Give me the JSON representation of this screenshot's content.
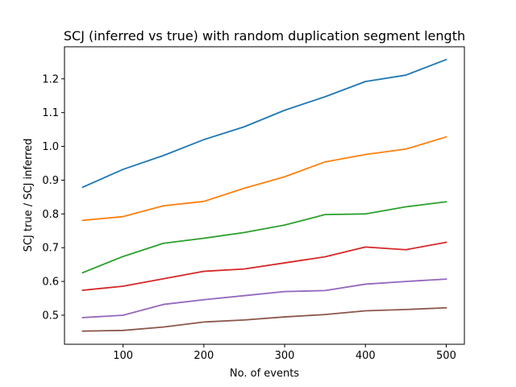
{
  "chart_data": {
    "type": "line",
    "title": "SCJ (inferred vs true) with random duplication segment length",
    "xlabel": "No. of events",
    "ylabel": "SCJ true / SCJ inferred",
    "xlim": [
      27.5,
      522.5
    ],
    "ylim": [
      0.414,
      1.295
    ],
    "x_ticks": [
      100,
      200,
      300,
      400,
      500
    ],
    "y_ticks": [
      0.5,
      0.6,
      0.7,
      0.8,
      0.9,
      1.0,
      1.1,
      1.2
    ],
    "y_tick_labels": [
      "0.5",
      "0.6",
      "0.7",
      "0.8",
      "0.9",
      "1.0",
      "1.1",
      "1.2"
    ],
    "grid": false,
    "x": [
      50,
      100,
      150,
      200,
      250,
      300,
      350,
      400,
      450,
      500
    ],
    "series": [
      {
        "color": "#1f77b4",
        "values": [
          0.879,
          0.932,
          0.973,
          1.02,
          1.058,
          1.107,
          1.147,
          1.192,
          1.211,
          1.257
        ]
      },
      {
        "color": "#ff7f0e",
        "values": [
          0.781,
          0.792,
          0.824,
          0.837,
          0.876,
          0.91,
          0.954,
          0.976,
          0.992,
          1.028
        ]
      },
      {
        "color": "#2ca02c",
        "values": [
          0.626,
          0.674,
          0.713,
          0.728,
          0.745,
          0.767,
          0.798,
          0.8,
          0.821,
          0.836
        ]
      },
      {
        "color": "#d62728",
        "values": [
          0.574,
          0.586,
          0.608,
          0.63,
          0.637,
          0.655,
          0.673,
          0.702,
          0.694,
          0.716
        ]
      },
      {
        "color": "#9467bd",
        "values": [
          0.493,
          0.5,
          0.532,
          0.546,
          0.558,
          0.57,
          0.573,
          0.592,
          0.6,
          0.607
        ]
      },
      {
        "color": "#8c564b",
        "values": [
          0.453,
          0.455,
          0.465,
          0.48,
          0.486,
          0.495,
          0.502,
          0.513,
          0.517,
          0.522
        ]
      }
    ]
  }
}
